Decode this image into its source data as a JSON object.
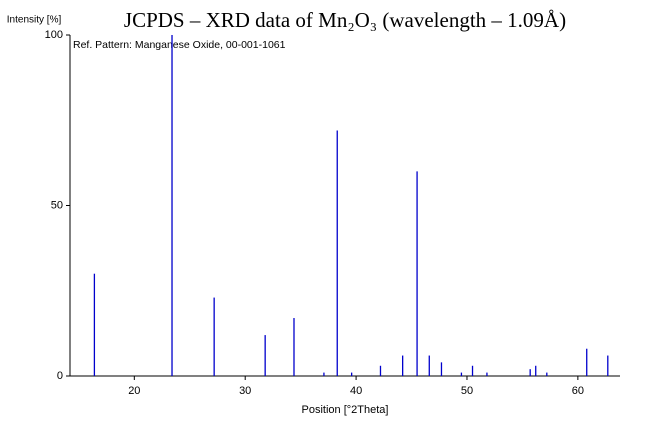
{
  "chart_data": {
    "type": "stem",
    "title": "JCPDS – XRD data of Mn₂O₃ (wavelength – 1.09Å)",
    "y_label": "Intensity [%]",
    "x_label": "Position [°2Theta]",
    "annotation": "Ref. Pattern: Manganese Oxide, 00-001-1061",
    "x": [
      16.4,
      23.4,
      27.2,
      31.8,
      34.4,
      37.1,
      38.3,
      39.6,
      42.2,
      44.2,
      45.5,
      46.6,
      47.7,
      49.5,
      50.5,
      51.8,
      55.7,
      56.2,
      57.2,
      60.8,
      62.7
    ],
    "values": [
      30,
      100,
      23,
      12,
      17,
      1,
      72,
      1,
      3,
      6,
      60,
      6,
      4,
      1,
      3,
      1,
      2,
      3,
      1,
      8,
      6
    ],
    "color": "#0000cc",
    "xlim": [
      14.2,
      63.8
    ],
    "xticks": [
      20,
      30,
      40,
      50,
      60
    ],
    "ylim": [
      0,
      100
    ],
    "yticks": [
      0,
      50,
      100
    ]
  }
}
